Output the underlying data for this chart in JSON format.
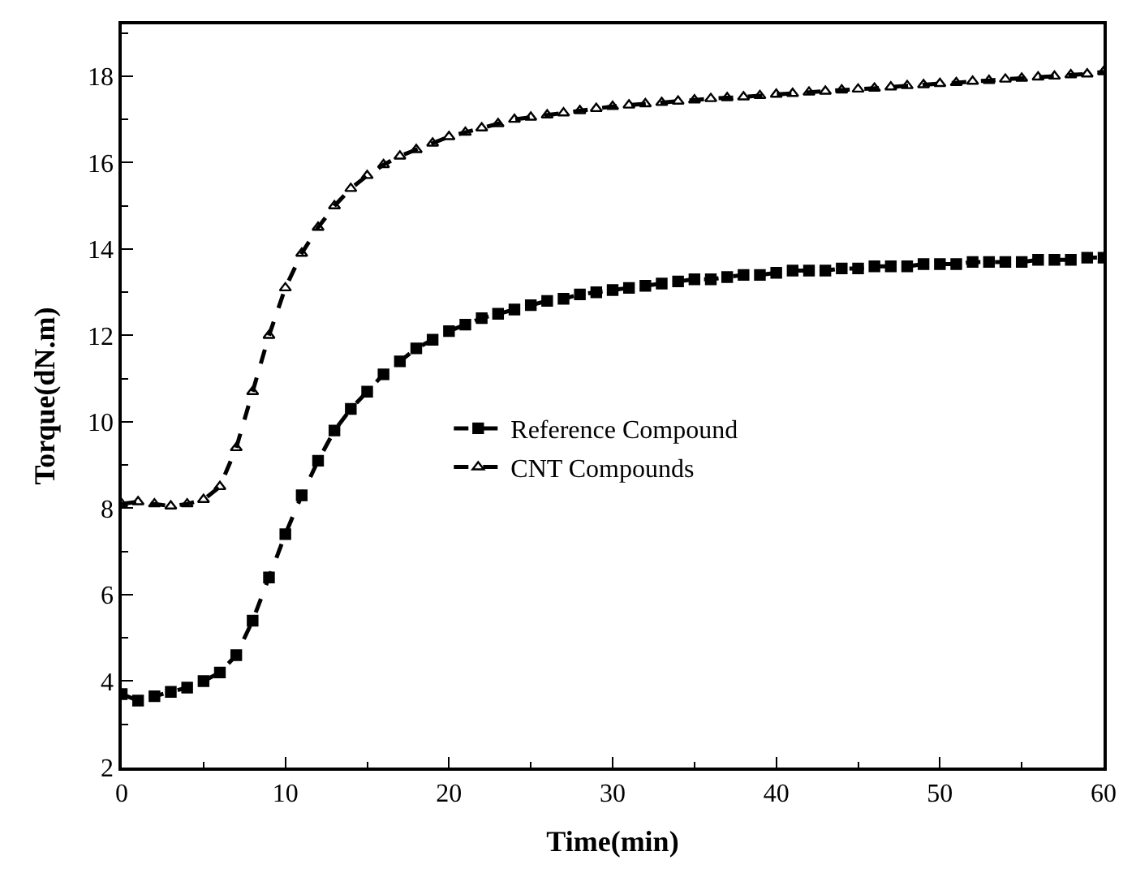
{
  "chart_data": {
    "type": "line",
    "xlabel": "Time(min)",
    "ylabel": "Torque(dN.m)",
    "x": [
      0,
      1,
      2,
      3,
      4,
      5,
      6,
      7,
      8,
      9,
      10,
      11,
      12,
      13,
      14,
      15,
      16,
      17,
      18,
      19,
      20,
      21,
      22,
      23,
      24,
      25,
      26,
      27,
      28,
      29,
      30,
      31,
      32,
      33,
      34,
      35,
      36,
      37,
      38,
      39,
      40,
      41,
      42,
      43,
      44,
      45,
      46,
      47,
      48,
      49,
      50,
      51,
      52,
      53,
      54,
      55,
      56,
      57,
      58,
      59,
      60
    ],
    "series": [
      {
        "name": "Reference Compound",
        "color": "#000000",
        "marker": "square",
        "values": [
          3.7,
          3.55,
          3.65,
          3.75,
          3.85,
          4.0,
          4.2,
          4.6,
          5.4,
          6.4,
          7.4,
          8.3,
          9.1,
          9.8,
          10.3,
          10.7,
          11.1,
          11.4,
          11.7,
          11.9,
          12.1,
          12.25,
          12.4,
          12.5,
          12.6,
          12.7,
          12.8,
          12.85,
          12.95,
          13.0,
          13.05,
          13.1,
          13.15,
          13.2,
          13.25,
          13.3,
          13.3,
          13.35,
          13.4,
          13.4,
          13.45,
          13.5,
          13.5,
          13.5,
          13.55,
          13.55,
          13.6,
          13.6,
          13.6,
          13.65,
          13.65,
          13.65,
          13.7,
          13.7,
          13.7,
          13.7,
          13.75,
          13.75,
          13.75,
          13.8,
          13.8
        ]
      },
      {
        "name": "CNT Compounds",
        "color": "#000000",
        "marker": "triangle",
        "values": [
          8.1,
          8.15,
          8.1,
          8.05,
          8.1,
          8.2,
          8.5,
          9.4,
          10.7,
          12.0,
          13.1,
          13.9,
          14.5,
          15.0,
          15.4,
          15.7,
          15.95,
          16.15,
          16.3,
          16.45,
          16.6,
          16.7,
          16.8,
          16.9,
          17.0,
          17.05,
          17.1,
          17.15,
          17.2,
          17.25,
          17.3,
          17.33,
          17.36,
          17.39,
          17.42,
          17.45,
          17.48,
          17.5,
          17.52,
          17.55,
          17.58,
          17.6,
          17.63,
          17.65,
          17.68,
          17.7,
          17.72,
          17.75,
          17.78,
          17.8,
          17.83,
          17.85,
          17.88,
          17.9,
          17.93,
          17.95,
          17.98,
          18.0,
          18.03,
          18.05,
          18.1
        ]
      }
    ],
    "xlim": [
      0,
      60
    ],
    "xticks": [
      0,
      10,
      20,
      30,
      40,
      50,
      60
    ],
    "ylim": [
      2,
      19.2
    ],
    "yticks": [
      2,
      4,
      6,
      8,
      10,
      12,
      14,
      16,
      18
    ],
    "line_style": "dashed",
    "legend": "center"
  }
}
